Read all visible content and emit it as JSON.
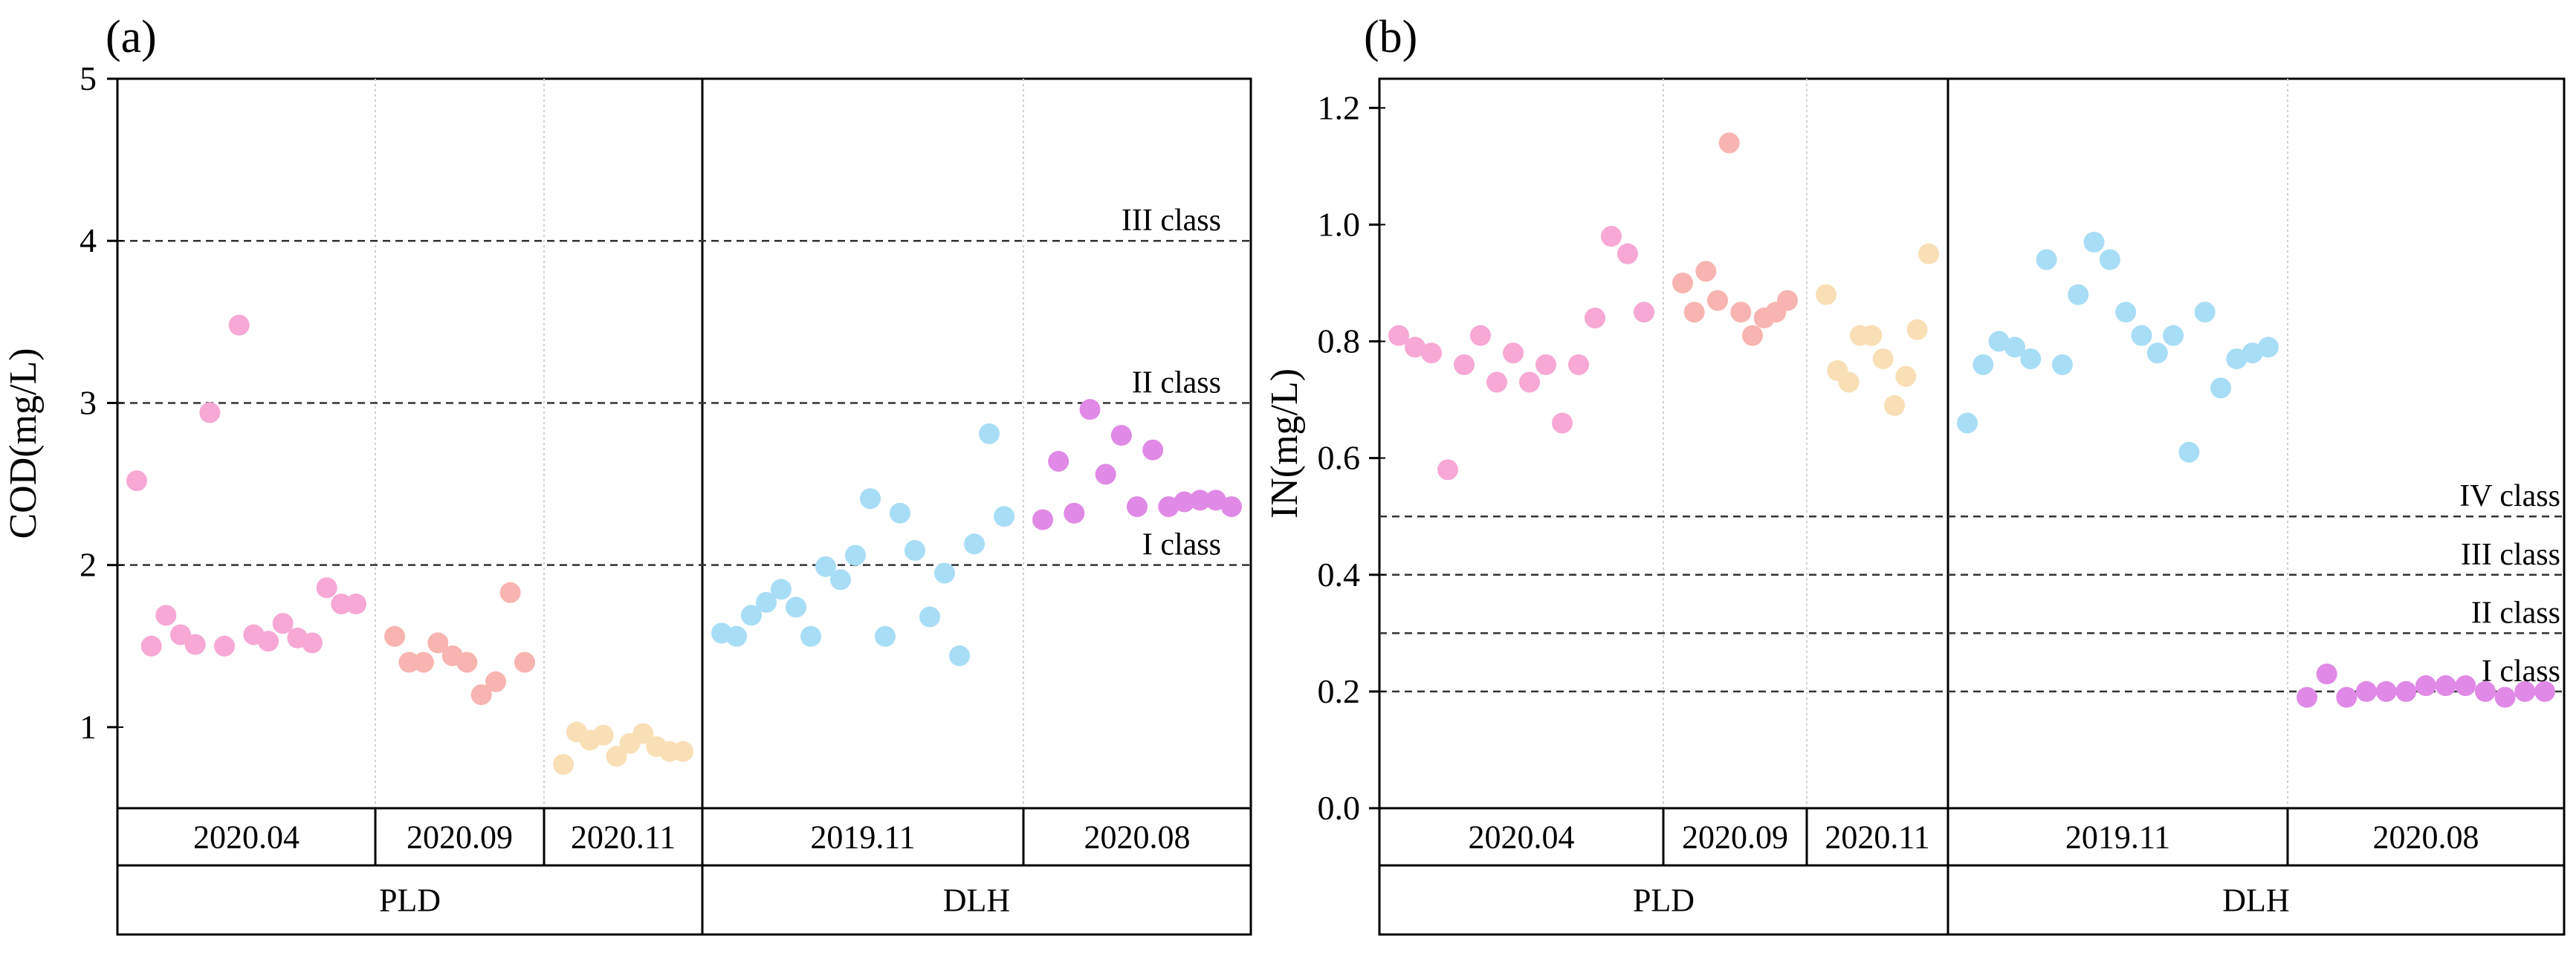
{
  "chart_data": [
    {
      "type": "scatter",
      "panel_label": "(a)",
      "ylabel": "COD(mg/L)",
      "xlabel": "",
      "ylim": [
        0.5,
        5
      ],
      "yticks": [
        "1",
        "2",
        "3",
        "4",
        "5"
      ],
      "grid": false,
      "class_lines": [
        {
          "value": 2,
          "label": "I class"
        },
        {
          "value": 3,
          "label": "II class"
        },
        {
          "value": 4,
          "label": "III class"
        }
      ],
      "categories": [
        "2020.04",
        "2020.09",
        "2020.11",
        "2019.11",
        "2020.08"
      ],
      "groups": [
        {
          "label": "PLD",
          "categories": [
            "2020.04",
            "2020.09",
            "2020.11"
          ]
        },
        {
          "label": "DLH",
          "categories": [
            "2019.11",
            "2020.08"
          ]
        }
      ],
      "series": [
        {
          "name": "2020.04",
          "color": "#F7A8D4",
          "values": [
            2.52,
            1.5,
            1.69,
            1.57,
            1.51,
            2.94,
            1.5,
            3.48,
            1.57,
            1.53,
            1.64,
            1.55,
            1.52,
            1.86,
            1.76,
            1.76
          ]
        },
        {
          "name": "2020.09",
          "color": "#F8B4B0",
          "values": [
            1.56,
            1.4,
            1.4,
            1.52,
            1.44,
            1.4,
            1.2,
            1.28,
            1.83,
            1.4
          ]
        },
        {
          "name": "2020.11",
          "color": "#F9DFB6",
          "values": [
            0.77,
            0.97,
            0.92,
            0.95,
            0.82,
            0.9,
            0.96,
            0.88,
            0.85,
            0.85
          ]
        },
        {
          "name": "2019.11",
          "color": "#A8DDF6",
          "values": [
            1.58,
            1.56,
            1.69,
            1.77,
            1.85,
            1.74,
            1.56,
            1.99,
            1.91,
            2.06,
            2.41,
            1.56,
            2.32,
            2.09,
            1.68,
            1.95,
            1.44,
            2.13,
            2.81,
            2.3
          ]
        },
        {
          "name": "2020.08",
          "color": "#E089E6",
          "values": [
            2.28,
            2.64,
            2.32,
            2.96,
            2.56,
            2.8,
            2.36,
            2.71,
            2.36,
            2.39,
            2.4,
            2.4,
            2.36
          ]
        }
      ]
    },
    {
      "type": "scatter",
      "panel_label": "(b)",
      "ylabel": "IN(mg/L)",
      "xlabel": "",
      "ylim": [
        0,
        1.25
      ],
      "yticks": [
        "0.0",
        "0.2",
        "0.4",
        "0.6",
        "0.8",
        "1.0",
        "1.2"
      ],
      "grid": false,
      "class_lines": [
        {
          "value": 0.2,
          "label": "I class"
        },
        {
          "value": 0.3,
          "label": "II class"
        },
        {
          "value": 0.4,
          "label": "III class"
        },
        {
          "value": 0.5,
          "label": "IV class"
        }
      ],
      "categories": [
        "2020.04",
        "2020.09",
        "2020.11",
        "2019.11",
        "2020.08"
      ],
      "groups": [
        {
          "label": "PLD",
          "categories": [
            "2020.04",
            "2020.09",
            "2020.11"
          ]
        },
        {
          "label": "DLH",
          "categories": [
            "2019.11",
            "2020.08"
          ]
        }
      ],
      "series": [
        {
          "name": "2020.04",
          "color": "#F7A8D4",
          "values": [
            0.81,
            0.79,
            0.78,
            0.58,
            0.76,
            0.81,
            0.73,
            0.78,
            0.73,
            0.76,
            0.66,
            0.76,
            0.84,
            0.98,
            0.95,
            0.85
          ]
        },
        {
          "name": "2020.09",
          "color": "#F8B4B0",
          "values": [
            0.9,
            0.85,
            0.92,
            0.87,
            1.14,
            0.85,
            0.81,
            0.84,
            0.85,
            0.87
          ]
        },
        {
          "name": "2020.11",
          "color": "#F9DFB6",
          "values": [
            0.88,
            0.75,
            0.73,
            0.81,
            0.81,
            0.77,
            0.69,
            0.74,
            0.82,
            0.95
          ]
        },
        {
          "name": "2019.11",
          "color": "#A8DDF6",
          "values": [
            0.66,
            0.76,
            0.8,
            0.79,
            0.77,
            0.94,
            0.76,
            0.88,
            0.97,
            0.94,
            0.85,
            0.81,
            0.78,
            0.81,
            0.61,
            0.85,
            0.72,
            0.77,
            0.78,
            0.79
          ]
        },
        {
          "name": "2020.08",
          "color": "#E089E6",
          "values": [
            0.19,
            0.23,
            0.19,
            0.2,
            0.2,
            0.2,
            0.21,
            0.21,
            0.21,
            0.2,
            0.19,
            0.2,
            0.2
          ]
        }
      ]
    }
  ]
}
